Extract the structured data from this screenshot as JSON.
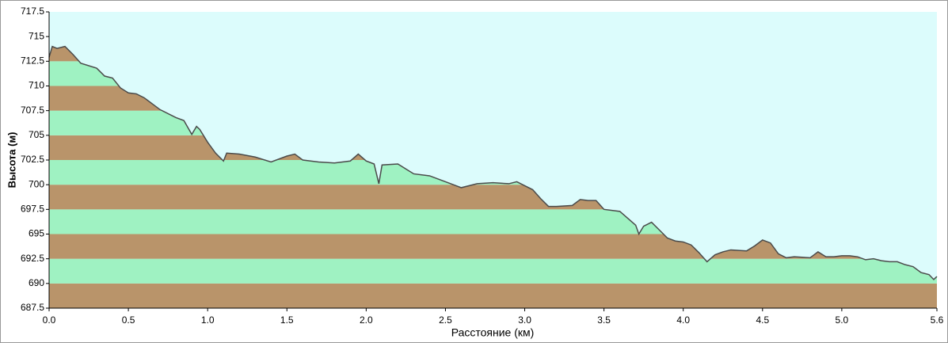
{
  "chart_data": {
    "type": "area",
    "x_label": "Расстояние  (км)",
    "y_label": "Высота (м)",
    "background": "#dcfcfc",
    "band_colors": [
      "#b9946a",
      "#9ff2c2"
    ],
    "line_color": "#4a4a4a",
    "xlim": [
      0,
      5.6
    ],
    "ylim": [
      687.5,
      717.5
    ],
    "xticks": [
      {
        "value": 0,
        "label": "0.0"
      },
      0.5,
      {
        "value": 1,
        "label": "1.0"
      },
      1.5,
      {
        "value": 2,
        "label": "2.0"
      },
      2.5,
      {
        "value": 3,
        "label": "3.0"
      },
      3.5,
      {
        "value": 4,
        "label": "4.0"
      },
      4.5,
      {
        "value": 5,
        "label": "5.0"
      },
      5.6
    ],
    "yticks": [
      687.5,
      690,
      692.5,
      695,
      697.5,
      700,
      702.5,
      705,
      707.5,
      710,
      712.5,
      715,
      717.5
    ],
    "x": [
      0,
      0.02,
      0.05,
      0.1,
      0.15,
      0.2,
      0.3,
      0.35,
      0.4,
      0.45,
      0.5,
      0.55,
      0.6,
      0.65,
      0.7,
      0.8,
      0.85,
      0.9,
      0.93,
      0.95,
      1.0,
      1.05,
      1.1,
      1.12,
      1.2,
      1.3,
      1.4,
      1.5,
      1.55,
      1.6,
      1.7,
      1.8,
      1.9,
      1.95,
      2.0,
      2.05,
      2.08,
      2.1,
      2.2,
      2.25,
      2.3,
      2.4,
      2.5,
      2.55,
      2.6,
      2.7,
      2.8,
      2.9,
      2.95,
      3.0,
      3.05,
      3.1,
      3.15,
      3.2,
      3.3,
      3.35,
      3.4,
      3.45,
      3.5,
      3.6,
      3.65,
      3.7,
      3.72,
      3.75,
      3.8,
      3.85,
      3.9,
      3.95,
      4.0,
      4.05,
      4.1,
      4.15,
      4.2,
      4.25,
      4.3,
      4.4,
      4.45,
      4.5,
      4.55,
      4.6,
      4.65,
      4.7,
      4.8,
      4.85,
      4.9,
      4.95,
      5.0,
      5.05,
      5.1,
      5.15,
      5.2,
      5.25,
      5.3,
      5.35,
      5.4,
      5.45,
      5.5,
      5.55,
      5.58,
      5.6
    ],
    "values": [
      712.9,
      714,
      713.8,
      714,
      713.2,
      712.3,
      711.8,
      711,
      710.8,
      709.8,
      709.3,
      709.2,
      708.8,
      708.2,
      707.6,
      706.8,
      706.5,
      705.1,
      705.9,
      705.6,
      704.3,
      703.2,
      702.4,
      703.2,
      703.1,
      702.8,
      702.3,
      702.9,
      703.1,
      702.5,
      702.3,
      702.2,
      702.4,
      703.1,
      702.4,
      702.1,
      700.1,
      702,
      702.1,
      701.6,
      701.1,
      700.9,
      700.3,
      700,
      699.7,
      700.1,
      700.2,
      700.1,
      700.3,
      699.9,
      699.5,
      698.6,
      697.8,
      697.8,
      697.9,
      698.5,
      698.4,
      698.4,
      697.5,
      697.3,
      696.6,
      695.9,
      695,
      695.8,
      696.2,
      695.4,
      694.6,
      694.3,
      694.2,
      693.9,
      693.1,
      692.2,
      692.9,
      693.2,
      693.4,
      693.3,
      693.8,
      694.4,
      694.1,
      693,
      692.6,
      692.7,
      692.6,
      693.2,
      692.7,
      692.7,
      692.8,
      692.8,
      692.7,
      692.4,
      692.5,
      692.3,
      692.2,
      692.2,
      691.9,
      691.7,
      691.1,
      690.9,
      690.4,
      690.7
    ]
  }
}
